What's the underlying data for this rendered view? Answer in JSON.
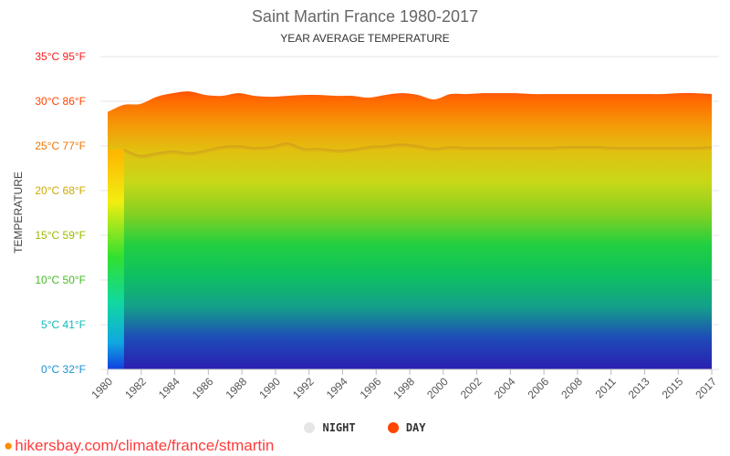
{
  "header": {
    "title": "Saint Martin France 1980-2017",
    "subtitle": "YEAR AVERAGE TEMPERATURE"
  },
  "footer": {
    "source": "hikersbay.com/climate/france/stmartin",
    "pin_icon": "map-pin-icon"
  },
  "legend": {
    "night_label": "NIGHT",
    "day_label": "DAY",
    "night_color": "#e6e6e6",
    "day_color": "#ff4500"
  },
  "chart_data": {
    "type": "area",
    "title": "Saint Martin France 1980-2017",
    "subtitle": "YEAR AVERAGE TEMPERATURE",
    "ylabel": "TEMPERATURE",
    "xlabel": "",
    "ylim": [
      0,
      35
    ],
    "yticks": [
      {
        "value": 0,
        "label": "0°C 32°F",
        "color": "#1e90d0"
      },
      {
        "value": 5,
        "label": "5°C 41°F",
        "color": "#12b8b8"
      },
      {
        "value": 10,
        "label": "10°C 50°F",
        "color": "#44bb22"
      },
      {
        "value": 15,
        "label": "15°C 59°F",
        "color": "#99bb00"
      },
      {
        "value": 20,
        "label": "20°C 68°F",
        "color": "#ccaa00"
      },
      {
        "value": 25,
        "label": "25°C 77°F",
        "color": "#ee7700"
      },
      {
        "value": 30,
        "label": "30°C 86°F",
        "color": "#ff4400"
      },
      {
        "value": 35,
        "label": "35°C 95°F",
        "color": "#ff1a1a"
      }
    ],
    "xtick_labels": [
      "1980",
      "1982",
      "1984",
      "1986",
      "1988",
      "1990",
      "1992",
      "1994",
      "1996",
      "1998",
      "2000",
      "2002",
      "2004",
      "2006",
      "2008",
      "2011",
      "2013",
      "2015",
      "2017"
    ],
    "x": [
      1980,
      1981,
      1982,
      1983,
      1984,
      1985,
      1986,
      1987,
      1988,
      1989,
      1990,
      1991,
      1992,
      1993,
      1994,
      1995,
      1996,
      1997,
      1998,
      1999,
      2000,
      2001,
      2002,
      2003,
      2004,
      2005,
      2006,
      2007,
      2008,
      2009,
      2010,
      2011,
      2012,
      2013,
      2014,
      2015,
      2016,
      2017
    ],
    "series": [
      {
        "name": "DAY",
        "values": [
          28.8,
          29.6,
          29.7,
          30.5,
          30.9,
          31.1,
          30.7,
          30.6,
          30.9,
          30.6,
          30.5,
          30.6,
          30.7,
          30.7,
          30.6,
          30.6,
          30.4,
          30.7,
          30.9,
          30.7,
          30.2,
          30.8,
          30.8,
          30.9,
          30.9,
          30.9,
          30.8,
          30.8,
          30.8,
          30.8,
          30.8,
          30.8,
          30.8,
          30.8,
          30.8,
          30.9,
          30.9,
          30.8
        ]
      },
      {
        "name": "NIGHT",
        "values": [
          null,
          24.6,
          23.9,
          24.2,
          24.4,
          24.2,
          24.5,
          24.9,
          25.0,
          24.8,
          24.9,
          25.3,
          24.7,
          24.7,
          24.5,
          24.6,
          24.9,
          25.0,
          25.2,
          25.0,
          24.7,
          24.9,
          24.8,
          24.8,
          24.8,
          24.8,
          24.8,
          24.8,
          24.9,
          24.9,
          24.9,
          24.8,
          24.8,
          24.8,
          24.8,
          24.8,
          24.8,
          24.9
        ]
      }
    ],
    "grid": true,
    "legend_position": "bottom"
  }
}
